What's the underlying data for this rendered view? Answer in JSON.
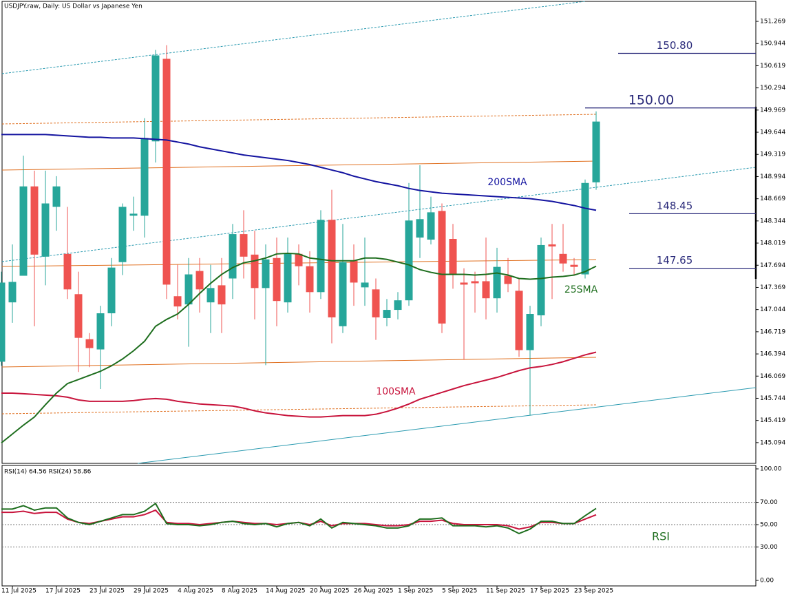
{
  "chart_data": [
    {
      "type": "candlestick",
      "title": "USDJPY.raw, Daily:  US Dollar vs Japanese Yen",
      "categories": [
        null,
        "11 Jul 2025",
        null,
        null,
        null,
        "17 Jul 2025",
        null,
        null,
        null,
        "23 Jul 2025",
        null,
        null,
        null,
        "29 Jul 2025",
        null,
        null,
        null,
        "4 Aug 2025",
        null,
        null,
        null,
        "8 Aug 2025",
        null,
        null,
        null,
        "14 Aug 2025",
        null,
        null,
        null,
        "20 Aug 2025",
        null,
        null,
        null,
        "26 Aug 2025",
        null,
        null,
        null,
        "1 Sep 2025",
        null,
        null,
        null,
        "5 Sep 2025",
        null,
        null,
        null,
        "11 Sep 2025",
        null,
        null,
        null,
        "17 Sep 2025",
        null,
        null,
        null,
        "23 Sep 2025",
        null
      ],
      "open": [
        146.28,
        147.15,
        147.54,
        148.85,
        147.82,
        148.55,
        147.86,
        147.27,
        146.61,
        146.46,
        146.99,
        147.74,
        148.42,
        148.42,
        149.51,
        150.72,
        147.24,
        147.12,
        147.61,
        147.15,
        147.4,
        147.5,
        148.15,
        147.85,
        147.36,
        147.8,
        147.15,
        147.86,
        147.68,
        147.3,
        148.36,
        146.8,
        147.76,
        147.37,
        147.34,
        146.92,
        147.04,
        147.18,
        148.1,
        148.07,
        148.49,
        148.08,
        147.44,
        147.46,
        147.46,
        147.21,
        147.54,
        147.32,
        146.45,
        146.96,
        148.0,
        147.86,
        147.7,
        147.56,
        148.91
      ],
      "high": [
        147.6,
        148.0,
        149.3,
        149.08,
        149.08,
        149.0,
        148.55,
        147.6,
        146.7,
        147.1,
        147.8,
        148.6,
        148.7,
        149.85,
        150.85,
        150.92,
        147.7,
        147.8,
        147.8,
        147.7,
        147.8,
        148.3,
        148.5,
        148.2,
        148.0,
        148.1,
        148.1,
        148.0,
        147.9,
        148.5,
        148.8,
        148.3,
        148.0,
        148.1,
        147.5,
        147.2,
        147.3,
        148.9,
        149.16,
        148.7,
        148.6,
        148.3,
        147.65,
        147.6,
        148.1,
        147.95,
        147.8,
        147.5,
        147.1,
        148.1,
        148.3,
        148.3,
        147.8,
        148.95,
        149.95
      ],
      "low": [
        146.22,
        146.85,
        147.54,
        146.8,
        147.4,
        148.2,
        147.2,
        146.13,
        146.2,
        145.88,
        146.8,
        147.55,
        148.2,
        148.1,
        149.2,
        147.2,
        146.9,
        146.5,
        147.0,
        146.7,
        146.7,
        147.2,
        147.5,
        146.9,
        146.23,
        146.8,
        147.0,
        147.4,
        147.0,
        147.2,
        146.55,
        146.7,
        147.1,
        147.1,
        146.6,
        146.8,
        146.9,
        147.1,
        147.8,
        148.0,
        146.7,
        147.35,
        146.31,
        147.0,
        146.9,
        147.0,
        147.3,
        146.35,
        145.49,
        146.8,
        147.2,
        147.6,
        147.55,
        147.5,
        148.8
      ],
      "close": [
        147.44,
        147.45,
        148.85,
        147.85,
        148.6,
        148.85,
        147.34,
        146.63,
        146.48,
        146.99,
        147.66,
        148.55,
        148.45,
        149.56,
        150.77,
        147.41,
        147.09,
        147.56,
        147.34,
        147.36,
        147.12,
        148.15,
        147.82,
        147.36,
        147.78,
        147.17,
        147.87,
        147.68,
        147.3,
        148.36,
        146.93,
        147.74,
        147.44,
        147.44,
        146.93,
        147.04,
        147.18,
        148.35,
        148.37,
        148.47,
        146.84,
        147.55,
        147.41,
        147.43,
        147.21,
        147.67,
        147.42,
        146.45,
        146.98,
        147.99,
        147.97,
        147.72,
        147.67,
        148.9,
        149.8
      ],
      "up_color": "#26a69a",
      "down_color": "#ef5350",
      "series": [
        {
          "name": "200SMA",
          "color": "#1414a0",
          "values": [
            149.61,
            149.61,
            149.61,
            149.61,
            149.61,
            149.6,
            149.59,
            149.58,
            149.57,
            149.57,
            149.56,
            149.56,
            149.56,
            149.55,
            149.54,
            149.53,
            149.5,
            149.47,
            149.43,
            149.4,
            149.37,
            149.34,
            149.31,
            149.29,
            149.27,
            149.25,
            149.23,
            149.2,
            149.17,
            149.13,
            149.09,
            149.05,
            149.0,
            148.96,
            148.92,
            148.89,
            148.86,
            148.82,
            148.79,
            148.77,
            148.75,
            148.74,
            148.73,
            148.72,
            148.71,
            148.7,
            148.69,
            148.68,
            148.67,
            148.65,
            148.63,
            148.6,
            148.57,
            148.53,
            148.5
          ]
        },
        {
          "name": "100SMA",
          "color": "#c8143c",
          "values": [
            145.82,
            145.82,
            145.81,
            145.8,
            145.79,
            145.78,
            145.76,
            145.72,
            145.7,
            145.7,
            145.7,
            145.7,
            145.71,
            145.73,
            145.74,
            145.73,
            145.7,
            145.68,
            145.66,
            145.65,
            145.64,
            145.63,
            145.6,
            145.56,
            145.53,
            145.51,
            145.49,
            145.48,
            145.47,
            145.47,
            145.48,
            145.49,
            145.49,
            145.49,
            145.51,
            145.55,
            145.6,
            145.66,
            145.73,
            145.78,
            145.83,
            145.88,
            145.93,
            145.97,
            146.01,
            146.05,
            146.1,
            146.15,
            146.19,
            146.21,
            146.24,
            146.28,
            146.33,
            146.38,
            146.42
          ]
        },
        {
          "name": "25SMA",
          "color": "#1e6e1e",
          "values": [
            145.09,
            145.22,
            145.35,
            145.47,
            145.65,
            145.82,
            145.96,
            146.02,
            146.08,
            146.14,
            146.22,
            146.32,
            146.44,
            146.58,
            146.8,
            146.9,
            146.98,
            147.12,
            147.28,
            147.43,
            147.56,
            147.66,
            147.73,
            147.76,
            147.8,
            147.86,
            147.87,
            147.86,
            147.8,
            147.78,
            147.76,
            147.76,
            147.76,
            147.8,
            147.8,
            147.78,
            147.74,
            147.7,
            147.63,
            147.59,
            147.56,
            147.56,
            147.56,
            147.55,
            147.56,
            147.58,
            147.55,
            147.5,
            147.49,
            147.5,
            147.52,
            147.53,
            147.55,
            147.6,
            147.68
          ]
        }
      ],
      "levels": [
        {
          "value": 150.8,
          "label": "150.80"
        },
        {
          "value": 150.0,
          "label": "150.00"
        },
        {
          "value": 148.45,
          "label": "148.45"
        },
        {
          "value": 147.65,
          "label": "147.65"
        }
      ],
      "level_color": "#2a2a7a",
      "ylim": [
        144.79,
        151.562
      ],
      "yticks": [
        151.269,
        150.944,
        150.619,
        150.294,
        149.969,
        149.644,
        149.319,
        148.994,
        148.669,
        148.344,
        148.019,
        147.694,
        147.369,
        147.044,
        146.719,
        146.394,
        146.069,
        145.744,
        145.419,
        145.094
      ]
    },
    {
      "type": "line",
      "title": "RSI(14) 64.56 RSI(24) 58.86",
      "annotation": "RSI",
      "series": [
        {
          "color": "#1e6e1e",
          "values": [
            64,
            64,
            67,
            63,
            65,
            65,
            56,
            52,
            50,
            53,
            56,
            59,
            59,
            62,
            69,
            51,
            50,
            50,
            49,
            50,
            52,
            53,
            51,
            50,
            51,
            48,
            51,
            52,
            49,
            55,
            47,
            52,
            51,
            50,
            49,
            47,
            47,
            49,
            55,
            55,
            56,
            49,
            49,
            49,
            48,
            49,
            47,
            42,
            46,
            53,
            53,
            51,
            51,
            58,
            64.56
          ]
        },
        {
          "color": "#c8143c",
          "values": [
            61,
            61,
            62,
            60,
            61,
            61,
            55,
            52,
            51,
            53,
            55,
            57,
            57,
            59,
            63,
            52,
            51,
            51,
            50,
            51,
            52,
            53,
            52,
            51,
            51,
            50,
            51,
            52,
            50,
            53,
            49,
            51,
            51,
            51,
            50,
            49,
            49,
            50,
            53,
            53,
            54,
            51,
            50,
            50,
            50,
            50,
            49,
            46,
            48,
            52,
            52,
            51,
            51,
            55,
            58.86
          ]
        }
      ],
      "ylim": [
        0,
        100
      ],
      "yticks": [
        {
          "value": 100,
          "label": "100.00"
        },
        {
          "value": 70,
          "label": "70.00"
        },
        {
          "value": 50,
          "label": "50.00"
        },
        {
          "value": 30,
          "label": "30.00"
        },
        {
          "value": 0,
          "label": "0.00"
        }
      ]
    }
  ]
}
